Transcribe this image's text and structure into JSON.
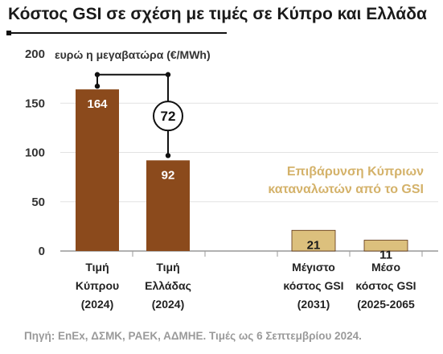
{
  "chart_data": {
    "type": "bar",
    "title": "Κόστος GSI σε σχέση με τιμές σε Κύπρο και Ελλάδα",
    "ylabel": "ευρώ η μεγαβατώρα (€/MWh)",
    "ylim": [
      0,
      200
    ],
    "yticks": [
      0,
      50,
      100,
      150,
      200
    ],
    "categories": [
      [
        "Τιμή",
        "Κύπρου",
        "(2024)"
      ],
      [
        "Τιμή",
        "Ελλάδας",
        "(2024)"
      ],
      [
        "Μέγιστο",
        "κόστος GSI",
        "(2031)"
      ],
      [
        "Μέσο",
        "κόστος GSI",
        "(2025-2065"
      ]
    ],
    "values": [
      164,
      92,
      21,
      11
    ],
    "value_labels": [
      "164",
      "92",
      "21",
      "11"
    ],
    "bar_colors": [
      "#8b4a1c",
      "#8b4a1c",
      "#dcc07d",
      "#dcc07d"
    ],
    "label_colors": [
      "#ffffff",
      "#ffffff",
      "#1a1a1a",
      "#1a1a1a"
    ],
    "difference_label": "72",
    "annotation": [
      "Επιβάρυνση Κύπριων",
      "καταναλωτών από το GSI"
    ],
    "accent_color": "#d4b26a"
  },
  "source": "Πηγή: ΕnΕx, ΔΣΜΚ, ΡΑΕΚ, ΑΔΜΗΕ. Τιμές ως 6 Σεπτεμβρίου 2024."
}
